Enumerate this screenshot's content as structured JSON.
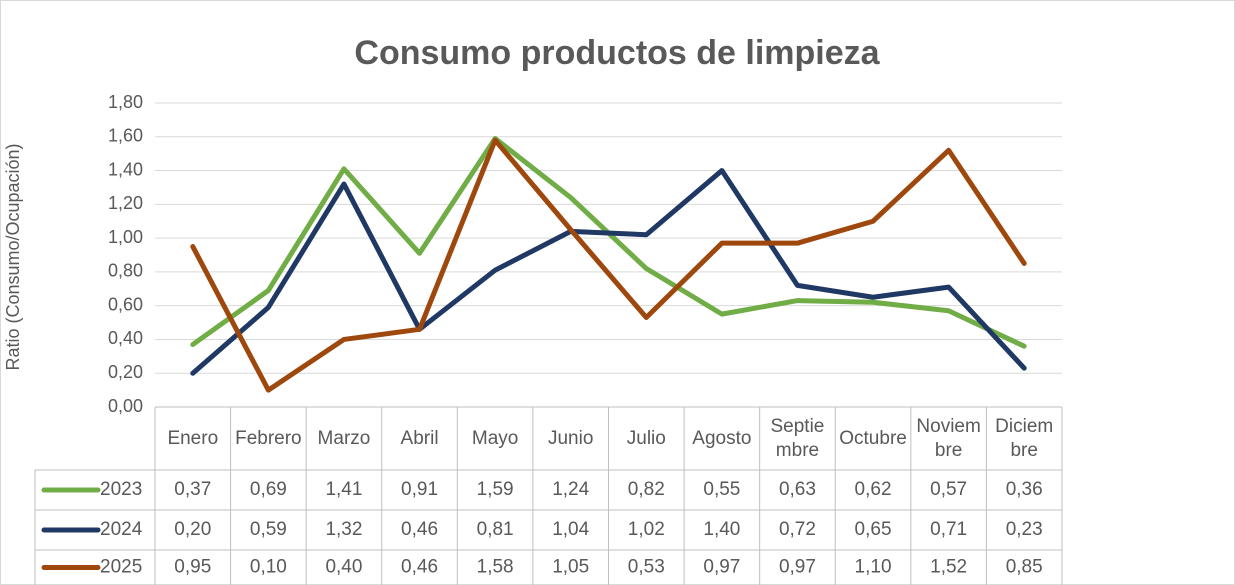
{
  "chart_data": {
    "type": "line",
    "title": "Consumo productos de limpieza",
    "y_label": "Ratio (Consumo/Ocupación)",
    "categories": [
      "Enero",
      "Febrero",
      "Marzo",
      "Abril",
      "Mayo",
      "Junio",
      "Julio",
      "Agosto",
      "Septiembre",
      "Octubre",
      "Noviembre",
      "Diciembre"
    ],
    "series": [
      {
        "name": "2023",
        "color": "#70ad47",
        "values": [
          0.37,
          0.69,
          1.41,
          0.91,
          1.59,
          1.24,
          0.82,
          0.55,
          0.63,
          0.62,
          0.57,
          0.36
        ],
        "value_labels": [
          "0,37",
          "0,69",
          "1,41",
          "0,91",
          "1,59",
          "1,24",
          "0,82",
          "0,55",
          "0,63",
          "0,62",
          "0,57",
          "0,36"
        ]
      },
      {
        "name": "2024",
        "color": "#203864",
        "values": [
          0.2,
          0.59,
          1.32,
          0.46,
          0.81,
          1.04,
          1.02,
          1.4,
          0.72,
          0.65,
          0.71,
          0.23
        ],
        "value_labels": [
          "0,20",
          "0,59",
          "1,32",
          "0,46",
          "0,81",
          "1,04",
          "1,02",
          "1,40",
          "0,72",
          "0,65",
          "0,71",
          "0,23"
        ]
      },
      {
        "name": "2025",
        "color": "#9e480e",
        "values": [
          0.95,
          0.1,
          0.4,
          0.46,
          1.58,
          1.05,
          0.53,
          0.97,
          0.97,
          1.1,
          1.52,
          0.85
        ],
        "value_labels": [
          "0,95",
          "0,10",
          "0,40",
          "0,46",
          "1,58",
          "1,05",
          "0,53",
          "0,97",
          "0,97",
          "1,10",
          "1,52",
          "0,85"
        ]
      }
    ],
    "ylim": [
      0,
      1.8
    ],
    "yticks": [
      {
        "value": 0,
        "label": "0,00"
      },
      {
        "value": 0.2,
        "label": "0,20"
      },
      {
        "value": 0.4,
        "label": "0,40"
      },
      {
        "value": 0.6,
        "label": "0,60"
      },
      {
        "value": 0.8,
        "label": "0,80"
      },
      {
        "value": 1.0,
        "label": "1,00"
      },
      {
        "value": 1.2,
        "label": "1,20"
      },
      {
        "value": 1.4,
        "label": "1,40"
      },
      {
        "value": 1.6,
        "label": "1,60"
      },
      {
        "value": 1.8,
        "label": "1,80"
      }
    ],
    "grid": true,
    "data_table": true
  }
}
